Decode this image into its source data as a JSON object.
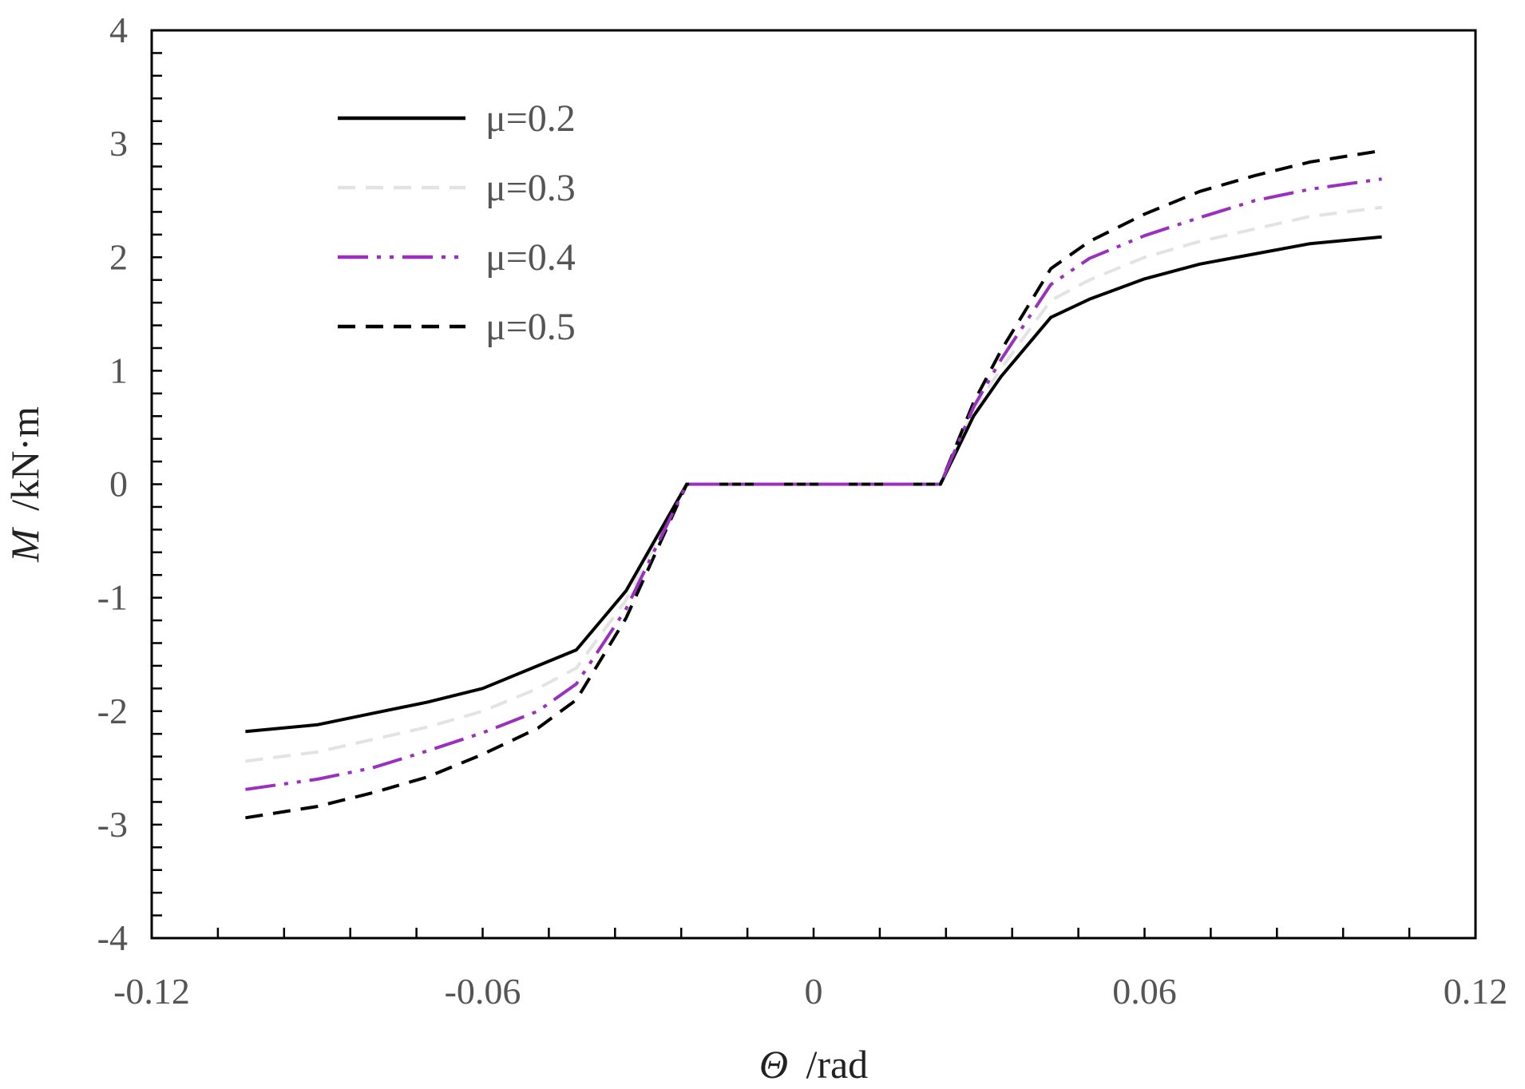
{
  "chart_data": {
    "type": "line",
    "title": "",
    "xlabel": {
      "symbol": "Θ",
      "unit": "/rad"
    },
    "ylabel": {
      "symbol": "M",
      "unit": "/kN·m"
    },
    "xlim": [
      -0.12,
      0.12
    ],
    "ylim": [
      -4,
      4
    ],
    "xticks": [
      -0.12,
      -0.06,
      0,
      0.06,
      0.12
    ],
    "xtick_labels": [
      "-0.12",
      "-0.06",
      "0",
      "0.06",
      "0.12"
    ],
    "yticks": [
      -4,
      -3,
      -2,
      -1,
      0,
      1,
      2,
      3,
      4
    ],
    "ytick_labels": [
      "-4",
      "-3",
      "-2",
      "-1",
      "0",
      "1",
      "2",
      "3",
      "4"
    ],
    "grid": false,
    "legend": "top-left",
    "x": [
      -0.103,
      -0.09,
      -0.08,
      -0.07,
      -0.06,
      -0.05,
      -0.043,
      -0.034,
      -0.023,
      -0.012,
      0,
      0.012,
      0.023,
      0.029,
      0.034,
      0.043,
      0.05,
      0.06,
      0.07,
      0.08,
      0.09,
      0.103
    ],
    "series": [
      {
        "name": "μ=0.2",
        "color": "#000000",
        "dash": "solid",
        "values": [
          -2.18,
          -2.12,
          -2.02,
          -1.92,
          -1.8,
          -1.6,
          -1.46,
          -0.94,
          0,
          0,
          0,
          0,
          0,
          0.6,
          0.95,
          1.47,
          1.63,
          1.81,
          1.94,
          2.03,
          2.12,
          2.18
        ]
      },
      {
        "name": "μ=0.3",
        "color": "#e3e3e3",
        "dash": "dashed",
        "values": [
          -2.44,
          -2.36,
          -2.25,
          -2.14,
          -2.0,
          -1.8,
          -1.62,
          -1.02,
          0,
          0,
          0,
          0,
          0,
          0.65,
          1.02,
          1.62,
          1.8,
          2.0,
          2.14,
          2.25,
          2.36,
          2.44
        ]
      },
      {
        "name": "μ=0.4",
        "color": "#9b2fbf",
        "dash": "dash-dot-dot",
        "values": [
          -2.69,
          -2.6,
          -2.5,
          -2.35,
          -2.19,
          -2.0,
          -1.76,
          -1.1,
          0,
          0,
          0,
          0,
          0,
          0.68,
          1.1,
          1.76,
          1.99,
          2.19,
          2.35,
          2.5,
          2.6,
          2.69
        ]
      },
      {
        "name": "μ=0.5",
        "color": "#000000",
        "dash": "dashed",
        "values": [
          -2.94,
          -2.84,
          -2.72,
          -2.58,
          -2.38,
          -2.15,
          -1.9,
          -1.18,
          0,
          0,
          0,
          0,
          0,
          0.72,
          1.18,
          1.9,
          2.14,
          2.38,
          2.58,
          2.72,
          2.84,
          2.94
        ]
      }
    ]
  }
}
